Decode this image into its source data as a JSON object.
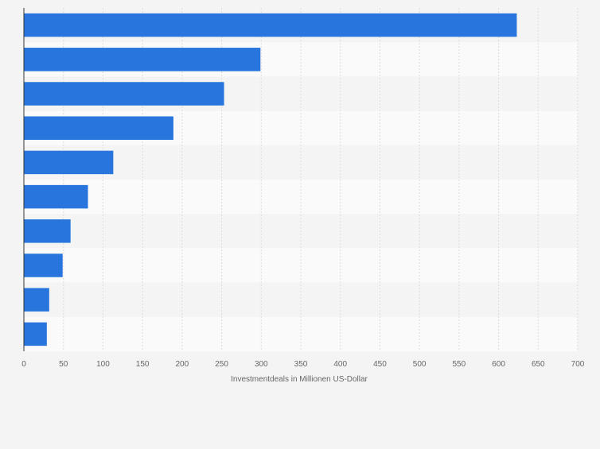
{
  "chart_data": {
    "type": "bar",
    "orientation": "horizontal",
    "categories": [
      "",
      "",
      "",
      "",
      "",
      "",
      "",
      "",
      "",
      ""
    ],
    "values": [
      623,
      299,
      253,
      189,
      113,
      81,
      59,
      49,
      32,
      29
    ],
    "title": "",
    "xlabel": "Investmentdeals in Millionen US-Dollar",
    "ylabel": "",
    "xlim": [
      0,
      700
    ],
    "xticks": [
      0,
      50,
      100,
      150,
      200,
      250,
      300,
      350,
      400,
      450,
      500,
      550,
      600,
      650,
      700
    ],
    "grid": true,
    "bar_color": "#2876dd",
    "band_colors": [
      "#f4f4f4",
      "#fafafa"
    ],
    "gridline_color": "#dcdcdc",
    "axis_color": "#333333",
    "tick_label_color": "#666666"
  }
}
